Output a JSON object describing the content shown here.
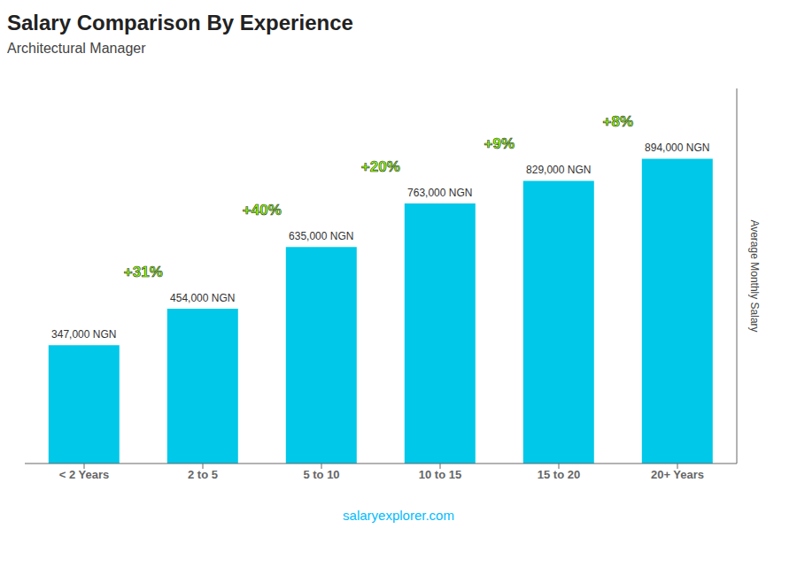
{
  "chart_data": {
    "type": "bar",
    "title": "Salary Comparison By Experience",
    "subtitle": "Architectural Manager",
    "ylabel": "Average Monthly Salary",
    "categories": [
      "< 2 Years",
      "2 to 5",
      "5 to 10",
      "10 to 15",
      "15 to 20",
      "20+ Years"
    ],
    "values": [
      347000,
      454000,
      635000,
      763000,
      829000,
      894000
    ],
    "value_labels": [
      "347,000 NGN",
      "454,000 NGN",
      "635,000 NGN",
      "763,000 NGN",
      "829,000 NGN",
      "894,000 NGN"
    ],
    "data_labels": true,
    "color": "#00c8e8",
    "ylim": [
      0,
      1100000
    ],
    "tick_labels": "x",
    "grid": false,
    "annotations": [
      {
        "text": "+31%",
        "color": "#88ff00"
      },
      {
        "text": "+40%",
        "color": "#88ff00"
      },
      {
        "text": "+20%",
        "color": "#88ff00"
      },
      {
        "text": "+9%",
        "color": "#88ff00"
      },
      {
        "text": "+8%",
        "color": "#88ff00"
      }
    ],
    "footer": {
      "text": "salaryexplorer.com",
      "color": "#00bbff"
    }
  }
}
